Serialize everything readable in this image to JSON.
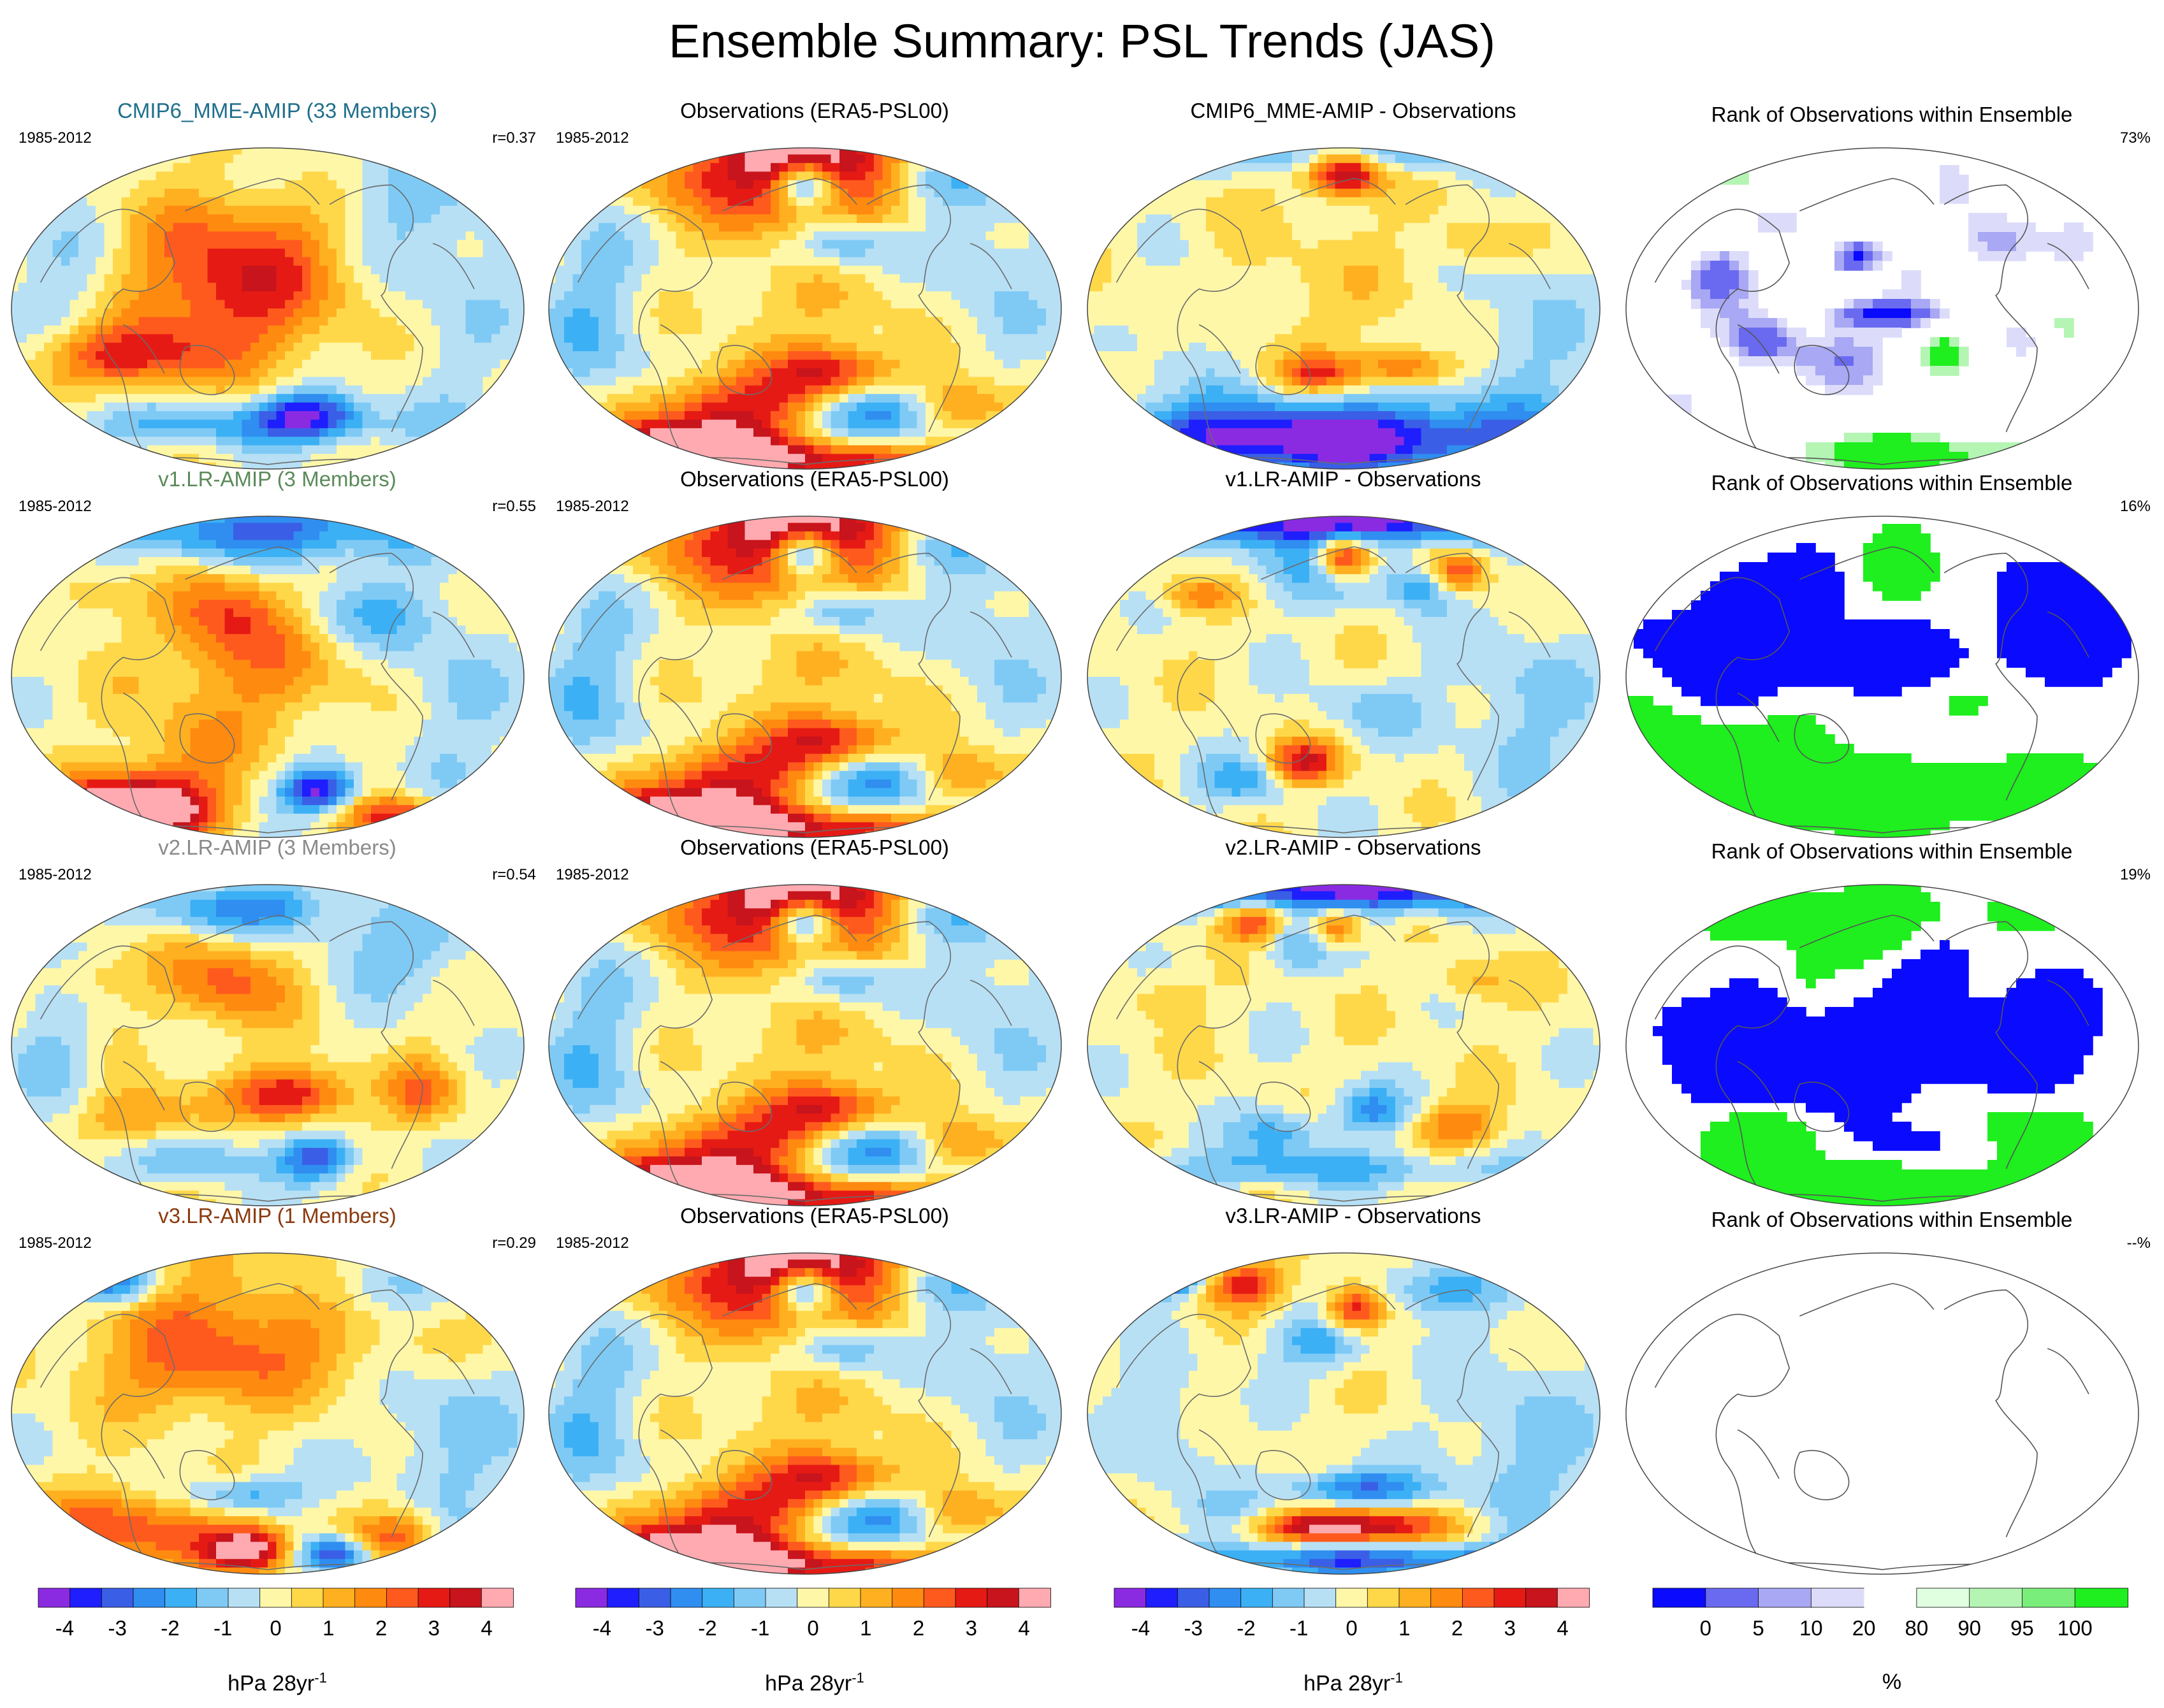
{
  "title": "Ensemble Summary: PSL Trends (JAS)",
  "colors": {
    "trend_palette": [
      "#8a2be2",
      "#1e1eff",
      "#3a5fe6",
      "#2f8ef0",
      "#3cb0f5",
      "#7fcaf5",
      "#b7e0f5",
      "#fff7a8",
      "#ffd84a",
      "#ffb020",
      "#ff8a10",
      "#ff5a1e",
      "#e61a14",
      "#c8141c",
      "#ffaab0"
    ],
    "rank_palette": [
      "#0a0aff",
      "#6a6af0",
      "#a8a8f5",
      "#dcdcfa",
      "#ffffff",
      "#e0ffe0",
      "#b4f5b4",
      "#7aee7a",
      "#1fee1f"
    ]
  },
  "rows": [
    {
      "model": {
        "title": "CMIP6_MME-AMIP (33 Members)",
        "title_color": "#1f6f8b",
        "period": "1985-2012",
        "stat": "r=0.37",
        "style": "mme"
      },
      "obs": {
        "title": "Observations (ERA5-PSL00)",
        "period": "1985-2012"
      },
      "diff": {
        "title": "CMIP6_MME-AMIP - Observations"
      },
      "rank": {
        "title": "Rank of Observations within Ensemble",
        "stat": "73%",
        "style": "sparse"
      }
    },
    {
      "model": {
        "title": "v1.LR-AMIP (3 Members)",
        "title_color": "#5a8a5a",
        "period": "1985-2012",
        "stat": "r=0.55",
        "style": "v1"
      },
      "obs": {
        "title": "Observations (ERA5-PSL00)",
        "period": "1985-2012"
      },
      "diff": {
        "title": "v1.LR-AMIP - Observations"
      },
      "rank": {
        "title": "Rank of Observations within Ensemble",
        "stat": "16%",
        "style": "blocky"
      }
    },
    {
      "model": {
        "title": "v2.LR-AMIP (3 Members)",
        "title_color": "#8a8a8a",
        "period": "1985-2012",
        "stat": "r=0.54",
        "style": "v2"
      },
      "obs": {
        "title": "Observations (ERA5-PSL00)",
        "period": "1985-2012"
      },
      "diff": {
        "title": "v2.LR-AMIP - Observations"
      },
      "rank": {
        "title": "Rank of Observations within Ensemble",
        "stat": "19%",
        "style": "blocky"
      }
    },
    {
      "model": {
        "title": "v3.LR-AMIP (1 Members)",
        "title_color": "#8b3a0e",
        "period": "1985-2012",
        "stat": "r=0.29",
        "style": "v3"
      },
      "obs": {
        "title": "Observations (ERA5-PSL00)",
        "period": "1985-2012"
      },
      "diff": {
        "title": "v3.LR-AMIP - Observations"
      },
      "rank": {
        "title": "Rank of Observations within Ensemble",
        "stat": "--%",
        "style": "empty"
      }
    }
  ],
  "chart_data": {
    "type": "heatmap",
    "title": "Ensemble Summary: PSL Trends (JAS)",
    "period": "1985-2012",
    "colorbars": [
      {
        "name": "trend",
        "unit": "hPa 28yr",
        "unit_exponent": "-1",
        "tick_labels": [
          "-4",
          "-3",
          "-2",
          "-1",
          "0",
          "1",
          "2",
          "3",
          "4"
        ],
        "range": [
          -4.5,
          4.5
        ]
      },
      {
        "name": "trend",
        "unit": "hPa 28yr",
        "unit_exponent": "-1",
        "tick_labels": [
          "-4",
          "-3",
          "-2",
          "-1",
          "0",
          "1",
          "2",
          "3",
          "4"
        ],
        "range": [
          -4.5,
          4.5
        ]
      },
      {
        "name": "trend",
        "unit": "hPa 28yr",
        "unit_exponent": "-1",
        "tick_labels": [
          "-4",
          "-3",
          "-2",
          "-1",
          "0",
          "1",
          "2",
          "3",
          "4"
        ],
        "range": [
          -4.5,
          4.5
        ]
      },
      {
        "name": "rank",
        "unit": "%",
        "unit_exponent": "",
        "tick_labels": [
          "0",
          "5",
          "10",
          "20",
          "80",
          "90",
          "95",
          "100"
        ],
        "bounds": [
          0,
          5,
          10,
          20,
          80,
          90,
          95,
          100
        ]
      }
    ],
    "pattern_correlations": [
      {
        "model": "CMIP6_MME-AMIP",
        "r": 0.37
      },
      {
        "model": "v1.LR-AMIP",
        "r": 0.55
      },
      {
        "model": "v2.LR-AMIP",
        "r": 0.54
      },
      {
        "model": "v3.LR-AMIP",
        "r": 0.29
      }
    ],
    "rank_percent_outside": [
      {
        "model": "CMIP6_MME-AMIP",
        "value": "73%"
      },
      {
        "model": "v1.LR-AMIP",
        "value": "16%"
      },
      {
        "model": "v2.LR-AMIP",
        "value": "19%"
      },
      {
        "model": "v3.LR-AMIP",
        "value": "--%"
      }
    ]
  }
}
